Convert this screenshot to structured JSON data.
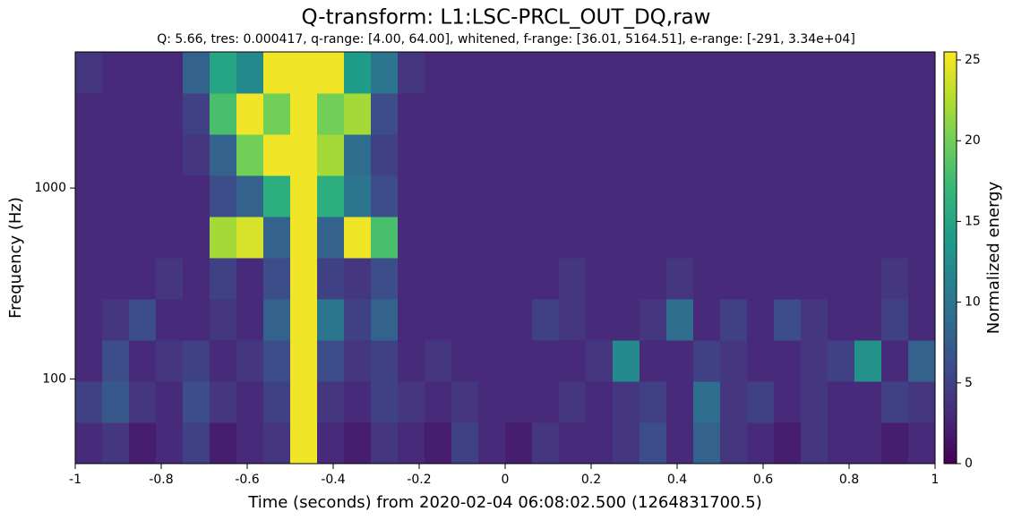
{
  "chart_data": {
    "type": "spectrogram",
    "title": "Q-transform: L1:LSC-PRCL_OUT_DQ,raw",
    "subtitle": "Q: 5.66, tres: 0.000417, q-range: [4.00, 64.00], whitened, f-range: [36.01, 5164.51], e-range: [-291, 3.34e+04]",
    "xlabel": "Time (seconds) from 2020-02-04 06:08:02.500 (1264831700.5)",
    "ylabel": "Frequency (Hz)",
    "colorbar_label": "Normalized energy",
    "xlim": [
      -1,
      1
    ],
    "xticks": [
      -1,
      -0.8,
      -0.6,
      -0.4,
      -0.2,
      0,
      0.2,
      0.4,
      0.6,
      0.8,
      1
    ],
    "ylim": [
      36.01,
      5164.51
    ],
    "yticks": [
      100,
      1000
    ],
    "log_y": true,
    "clim": [
      0,
      25.5
    ],
    "cticks": [
      0,
      5,
      10,
      15,
      20,
      25
    ],
    "xbins": [
      -1,
      -0.9375,
      -0.875,
      -0.8125,
      -0.75,
      -0.6875,
      -0.625,
      -0.5625,
      -0.5,
      -0.4375,
      -0.375,
      -0.3125,
      -0.25,
      -0.1875,
      -0.125,
      -0.0625,
      0,
      0.0625,
      0.125,
      0.1875,
      0.25,
      0.3125,
      0.375,
      0.4375,
      0.5,
      0.5625,
      0.625,
      0.6875,
      0.75,
      0.8125,
      0.875,
      0.9375,
      1
    ],
    "ybins": [
      36.01,
      59.17,
      97.22,
      159.7,
      262.5,
      431.3,
      708.7,
      1164,
      1913,
      3143,
      5164.51
    ],
    "z": [
      [
        3,
        4,
        2,
        3,
        5,
        2,
        3,
        4,
        25,
        3,
        2,
        4,
        3,
        2,
        5,
        3,
        2,
        4,
        3,
        3,
        4,
        6,
        3,
        8,
        4,
        3,
        2,
        4,
        3,
        3,
        2,
        3
      ],
      [
        5,
        7,
        4,
        3,
        6,
        4,
        3,
        5,
        25,
        4,
        3,
        5,
        4,
        3,
        4,
        3,
        3,
        3,
        4,
        3,
        4,
        5,
        3,
        9,
        4,
        5,
        3,
        4,
        3,
        3,
        5,
        4
      ],
      [
        3,
        6,
        3,
        4,
        5,
        3,
        4,
        6,
        25,
        6,
        4,
        5,
        3,
        4,
        3,
        3,
        3,
        3,
        3,
        4,
        12,
        3,
        3,
        5,
        4,
        3,
        3,
        4,
        5,
        13,
        3,
        8
      ],
      [
        3,
        4,
        6,
        3,
        3,
        4,
        3,
        8,
        25,
        10,
        5,
        8,
        3,
        3,
        3,
        3,
        3,
        5,
        4,
        3,
        3,
        4,
        9,
        3,
        5,
        3,
        6,
        4,
        3,
        3,
        5,
        3
      ],
      [
        3,
        3,
        3,
        4,
        3,
        5,
        3,
        6,
        25,
        5,
        4,
        6,
        3,
        3,
        3,
        3,
        3,
        3,
        4,
        3,
        3,
        3,
        4,
        3,
        3,
        3,
        3,
        3,
        3,
        3,
        4,
        3
      ],
      [
        3,
        3,
        3,
        3,
        3,
        22,
        24,
        8,
        25,
        8,
        25,
        18,
        3,
        3,
        3,
        3,
        3,
        3,
        3,
        3,
        3,
        3,
        3,
        3,
        3,
        3,
        3,
        3,
        3,
        3,
        3,
        3
      ],
      [
        3,
        3,
        3,
        3,
        3,
        6,
        8,
        16,
        25,
        16,
        10,
        6,
        3,
        3,
        3,
        3,
        3,
        3,
        3,
        3,
        3,
        3,
        3,
        3,
        3,
        3,
        3,
        3,
        3,
        3,
        3,
        3
      ],
      [
        3,
        3,
        3,
        3,
        4,
        8,
        20,
        25,
        25,
        22,
        9,
        5,
        3,
        3,
        3,
        3,
        3,
        3,
        3,
        3,
        3,
        3,
        3,
        3,
        3,
        3,
        3,
        3,
        3,
        3,
        3,
        3
      ],
      [
        3,
        3,
        3,
        3,
        5,
        18,
        25,
        20,
        25,
        20,
        22,
        6,
        3,
        3,
        3,
        3,
        3,
        3,
        3,
        3,
        3,
        3,
        3,
        3,
        3,
        3,
        3,
        3,
        3,
        3,
        3,
        3
      ],
      [
        4,
        3,
        3,
        3,
        8,
        15,
        12,
        25,
        25,
        25,
        14,
        10,
        4,
        3,
        3,
        3,
        3,
        3,
        3,
        3,
        3,
        3,
        3,
        3,
        3,
        3,
        3,
        3,
        3,
        3,
        3,
        3
      ]
    ]
  }
}
